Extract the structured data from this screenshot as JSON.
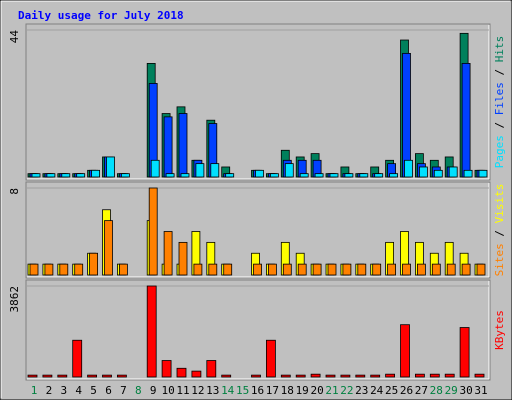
{
  "title": "Daily usage for July 2018",
  "chart_data": [
    {
      "type": "bar",
      "ylim": [
        0,
        44
      ],
      "yticks": [
        44
      ],
      "legend_separator": " / ",
      "series": [
        {
          "name": "Pages",
          "color": "#00e0ff",
          "values": [
            1,
            1,
            1,
            1,
            2,
            6,
            1,
            0,
            5,
            1,
            1,
            4,
            4,
            1,
            0,
            2,
            1,
            4,
            1,
            1,
            1,
            1,
            1,
            1,
            1,
            5,
            3,
            2,
            3,
            2,
            2
          ]
        },
        {
          "name": "Files",
          "color": "#0040ff",
          "values": [
            1,
            1,
            1,
            1,
            2,
            6,
            1,
            0,
            28,
            18,
            19,
            5,
            16,
            1,
            0,
            2,
            1,
            5,
            5,
            5,
            1,
            1,
            1,
            1,
            4,
            37,
            4,
            3,
            3,
            34,
            2
          ]
        },
        {
          "name": "Hits",
          "color": "#00805c",
          "values": [
            1,
            1,
            1,
            1,
            2,
            6,
            1,
            0,
            34,
            19,
            21,
            5,
            17,
            3,
            0,
            2,
            1,
            8,
            6,
            7,
            1,
            3,
            1,
            3,
            5,
            41,
            7,
            5,
            6,
            43,
            2
          ]
        }
      ]
    },
    {
      "type": "bar",
      "ylim": [
        0,
        8
      ],
      "yticks": [
        8
      ],
      "legend_separator": " / ",
      "series": [
        {
          "name": "Sites",
          "color": "#ff8000",
          "values": [
            1,
            1,
            1,
            1,
            2,
            5,
            1,
            0,
            8,
            4,
            3,
            1,
            1,
            1,
            0,
            1,
            1,
            1,
            1,
            1,
            1,
            1,
            1,
            1,
            1,
            1,
            1,
            1,
            1,
            1,
            1
          ]
        },
        {
          "name": "Visits",
          "color": "#ffff00",
          "values": [
            1,
            1,
            1,
            1,
            2,
            6,
            1,
            0,
            5,
            1,
            1,
            4,
            3,
            1,
            0,
            2,
            1,
            3,
            2,
            1,
            1,
            1,
            1,
            1,
            3,
            4,
            3,
            2,
            3,
            2,
            1
          ]
        }
      ]
    },
    {
      "type": "bar",
      "ylim": [
        0,
        3862
      ],
      "yticks": [
        3862
      ],
      "legend_separator": " / ",
      "categories": [
        "1",
        "2",
        "3",
        "4",
        "5",
        "6",
        "7",
        "8",
        "9",
        "10",
        "11",
        "12",
        "13",
        "14",
        "15",
        "16",
        "17",
        "18",
        "19",
        "20",
        "21",
        "22",
        "23",
        "24",
        "25",
        "26",
        "27",
        "28",
        "29",
        "30",
        "31"
      ],
      "category_colors": [
        "#008040",
        "#000000",
        "#000000",
        "#000000",
        "#000000",
        "#000000",
        "#000000",
        "#008040",
        "#000000",
        "#000000",
        "#000000",
        "#000000",
        "#000000",
        "#008040",
        "#008040",
        "#000000",
        "#000000",
        "#000000",
        "#000000",
        "#000000",
        "#008040",
        "#008040",
        "#000000",
        "#000000",
        "#000000",
        "#000000",
        "#000000",
        "#008040",
        "#008040",
        "#000000",
        "#000000"
      ],
      "series": [
        {
          "name": "KBytes",
          "color": "#ff0000",
          "values": [
            80,
            80,
            80,
            1560,
            80,
            80,
            80,
            0,
            3862,
            700,
            370,
            250,
            700,
            80,
            0,
            80,
            1560,
            80,
            80,
            120,
            80,
            80,
            80,
            80,
            120,
            2220,
            120,
            120,
            120,
            2100,
            120
          ]
        }
      ]
    }
  ]
}
